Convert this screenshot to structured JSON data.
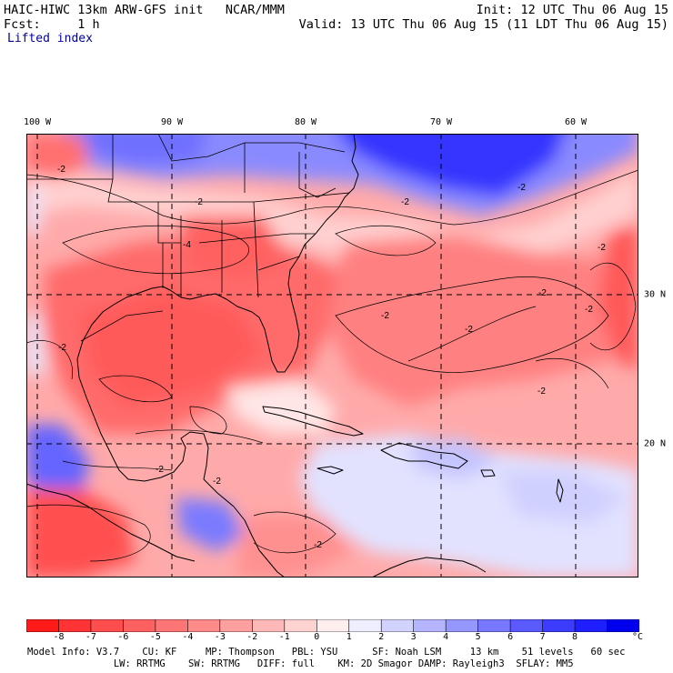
{
  "header": {
    "title_left": "HAIC-HIWC 13km ARW-GFS init   NCAR/MMM",
    "fcst_left": "Fcst:     1 h",
    "init_right": "Init: 12 UTC Thu 06 Aug 15",
    "valid_right": "Valid: 13 UTC Thu 06 Aug 15 (11 LDT Thu 06 Aug 15)",
    "field_name": "Lifted index"
  },
  "map": {
    "lon_labels": [
      "100 W",
      "90 W",
      "80 W",
      "70 W",
      "60 W"
    ],
    "lat_labels": [
      "30 N",
      "20 N"
    ],
    "contour_label": "-2",
    "contour_label_4": "-4"
  },
  "colorbar": {
    "ticks": [
      "-8",
      "-7",
      "-6",
      "-5",
      "-4",
      "-3",
      "-2",
      "-1",
      "0",
      "1",
      "2",
      "3",
      "4",
      "5",
      "6",
      "7",
      "8"
    ],
    "unit": "°C",
    "colors": [
      "#ff1a1a",
      "#ff3333",
      "#ff4d4d",
      "#ff6060",
      "#ff7575",
      "#ff8a8a",
      "#ffa0a0",
      "#ffb8b8",
      "#ffd2d2",
      "#ffeeee",
      "#eeeeff",
      "#d2d2ff",
      "#b4b4ff",
      "#9696ff",
      "#7878ff",
      "#5a5aff",
      "#3c3cff",
      "#1e1eff",
      "#0000ee"
    ]
  },
  "footer": {
    "line1": "Model Info: V3.7    CU: KF     MP: Thompson   PBL: YSU      SF: Noah LSM     13 km    51 levels   60 sec",
    "line2": "               LW: RRTMG    SW: RRTMG   DIFF: full    KM: 2D Smagor DAMP: Rayleigh3  SFLAY: MM5"
  }
}
